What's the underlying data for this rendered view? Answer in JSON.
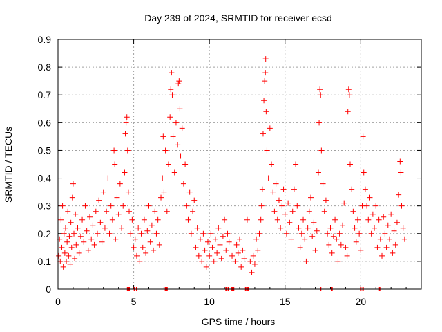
{
  "chart_data": {
    "type": "scatter",
    "title": "Day 239 of 2024, SRMTID for receiver ecsd",
    "xlabel": "GPS time / hours",
    "ylabel": "SRMTID / TECUs",
    "xlim": [
      0,
      24
    ],
    "ylim": [
      0,
      0.9
    ],
    "xticks": [
      0,
      5,
      10,
      15,
      20
    ],
    "xtick_labels": [
      "0",
      "5",
      "10",
      "15",
      "20"
    ],
    "yticks": [
      0,
      0.1,
      0.2,
      0.3,
      0.4,
      0.5,
      0.6,
      0.7,
      0.8,
      0.9
    ],
    "ytick_labels": [
      "0",
      "0.1",
      "0.2",
      "0.3",
      "0.4",
      "0.5",
      "0.6",
      "0.7",
      "0.8",
      "0.9"
    ],
    "grid": true,
    "marker": "+",
    "color": "#ff0000",
    "baseline_marks_x": [
      4.6,
      4.7,
      5.05,
      5.2,
      7.1,
      7.2,
      11.1,
      11.25,
      11.5,
      11.6,
      12.4,
      12.55,
      17.35,
      18.1,
      20.0,
      20.15,
      21.25
    ],
    "series": [
      {
        "name": "SRMTID",
        "points": [
          [
            0.05,
            0.12
          ],
          [
            0.1,
            0.18
          ],
          [
            0.15,
            0.1
          ],
          [
            0.2,
            0.25
          ],
          [
            0.25,
            0.15
          ],
          [
            0.3,
            0.3
          ],
          [
            0.35,
            0.08
          ],
          [
            0.4,
            0.2
          ],
          [
            0.45,
            0.13
          ],
          [
            0.5,
            0.22
          ],
          [
            0.55,
            0.1
          ],
          [
            0.6,
            0.17
          ],
          [
            0.65,
            0.28
          ],
          [
            0.7,
            0.12
          ],
          [
            0.75,
            0.19
          ],
          [
            0.8,
            0.09
          ],
          [
            0.85,
            0.24
          ],
          [
            0.9,
            0.15
          ],
          [
            0.95,
            0.33
          ],
          [
            1.0,
            0.38
          ],
          [
            1.05,
            0.2
          ],
          [
            1.1,
            0.11
          ],
          [
            1.15,
            0.27
          ],
          [
            1.2,
            0.16
          ],
          [
            1.3,
            0.22
          ],
          [
            1.4,
            0.13
          ],
          [
            1.5,
            0.19
          ],
          [
            1.6,
            0.25
          ],
          [
            1.7,
            0.17
          ],
          [
            1.8,
            0.3
          ],
          [
            1.9,
            0.21
          ],
          [
            2.0,
            0.14
          ],
          [
            2.1,
            0.26
          ],
          [
            2.2,
            0.18
          ],
          [
            2.3,
            0.23
          ],
          [
            2.4,
            0.16
          ],
          [
            2.5,
            0.28
          ],
          [
            2.6,
            0.2
          ],
          [
            2.7,
            0.32
          ],
          [
            2.8,
            0.24
          ],
          [
            2.9,
            0.17
          ],
          [
            3.0,
            0.35
          ],
          [
            3.1,
            0.22
          ],
          [
            3.2,
            0.28
          ],
          [
            3.3,
            0.4
          ],
          [
            3.4,
            0.2
          ],
          [
            3.5,
            0.3
          ],
          [
            3.6,
            0.25
          ],
          [
            3.7,
            0.5
          ],
          [
            3.75,
            0.45
          ],
          [
            3.8,
            0.18
          ],
          [
            3.9,
            0.33
          ],
          [
            4.0,
            0.27
          ],
          [
            4.1,
            0.38
          ],
          [
            4.2,
            0.22
          ],
          [
            4.3,
            0.3
          ],
          [
            4.4,
            0.42
          ],
          [
            4.45,
            0.56
          ],
          [
            4.5,
            0.6
          ],
          [
            4.55,
            0.62
          ],
          [
            4.6,
            0.5
          ],
          [
            4.65,
            0.35
          ],
          [
            4.7,
            0.28
          ],
          [
            4.8,
            0.2
          ],
          [
            4.9,
            0.25
          ],
          [
            5.0,
            0.15
          ],
          [
            5.1,
            0.18
          ],
          [
            5.2,
            0.12
          ],
          [
            5.3,
            0.22
          ],
          [
            5.4,
            0.1
          ],
          [
            5.5,
            0.2
          ],
          [
            5.6,
            0.15
          ],
          [
            5.7,
            0.25
          ],
          [
            5.8,
            0.13
          ],
          [
            5.9,
            0.21
          ],
          [
            6.0,
            0.3
          ],
          [
            6.1,
            0.17
          ],
          [
            6.2,
            0.23
          ],
          [
            6.3,
            0.14
          ],
          [
            6.4,
            0.28
          ],
          [
            6.5,
            0.2
          ],
          [
            6.6,
            0.25
          ],
          [
            6.7,
            0.16
          ],
          [
            6.8,
            0.33
          ],
          [
            6.9,
            0.4
          ],
          [
            6.95,
            0.55
          ],
          [
            7.0,
            0.35
          ],
          [
            7.1,
            0.5
          ],
          [
            7.2,
            0.28
          ],
          [
            7.3,
            0.45
          ],
          [
            7.4,
            0.62
          ],
          [
            7.45,
            0.72
          ],
          [
            7.5,
            0.78
          ],
          [
            7.55,
            0.7
          ],
          [
            7.6,
            0.55
          ],
          [
            7.7,
            0.42
          ],
          [
            7.8,
            0.6
          ],
          [
            7.9,
            0.52
          ],
          [
            7.95,
            0.74
          ],
          [
            8.0,
            0.75
          ],
          [
            8.05,
            0.65
          ],
          [
            8.1,
            0.48
          ],
          [
            8.2,
            0.58
          ],
          [
            8.3,
            0.38
          ],
          [
            8.4,
            0.45
          ],
          [
            8.5,
            0.3
          ],
          [
            8.6,
            0.25
          ],
          [
            8.7,
            0.35
          ],
          [
            8.8,
            0.2
          ],
          [
            8.9,
            0.28
          ],
          [
            9.0,
            0.32
          ],
          [
            9.1,
            0.15
          ],
          [
            9.2,
            0.22
          ],
          [
            9.3,
            0.12
          ],
          [
            9.4,
            0.18
          ],
          [
            9.5,
            0.1
          ],
          [
            9.6,
            0.2
          ],
          [
            9.7,
            0.14
          ],
          [
            9.8,
            0.08
          ],
          [
            9.9,
            0.17
          ],
          [
            10.0,
            0.12
          ],
          [
            10.1,
            0.2
          ],
          [
            10.2,
            0.15
          ],
          [
            10.3,
            0.1
          ],
          [
            10.4,
            0.18
          ],
          [
            10.5,
            0.13
          ],
          [
            10.6,
            0.22
          ],
          [
            10.7,
            0.16
          ],
          [
            10.8,
            0.11
          ],
          [
            10.9,
            0.19
          ],
          [
            11.0,
            0.25
          ],
          [
            11.1,
            0.14
          ],
          [
            11.2,
            0.2
          ],
          [
            11.3,
            0.17
          ],
          [
            11.5,
            0.12
          ],
          [
            11.7,
            0.1
          ],
          [
            11.8,
            0.16
          ],
          [
            11.9,
            0.13
          ],
          [
            12.0,
            0.18
          ],
          [
            12.1,
            0.08
          ],
          [
            12.2,
            0.14
          ],
          [
            12.3,
            0.11
          ],
          [
            12.5,
            0.25
          ],
          [
            12.7,
            0.1
          ],
          [
            12.8,
            0.06
          ],
          [
            12.9,
            0.12
          ],
          [
            13.0,
            0.09
          ],
          [
            13.1,
            0.18
          ],
          [
            13.2,
            0.14
          ],
          [
            13.3,
            0.2
          ],
          [
            13.4,
            0.25
          ],
          [
            13.45,
            0.3
          ],
          [
            13.5,
            0.36
          ],
          [
            13.55,
            0.56
          ],
          [
            13.6,
            0.68
          ],
          [
            13.65,
            0.75
          ],
          [
            13.7,
            0.78
          ],
          [
            13.72,
            0.83
          ],
          [
            13.75,
            0.64
          ],
          [
            13.8,
            0.5
          ],
          [
            13.9,
            0.4
          ],
          [
            14.0,
            0.58
          ],
          [
            14.1,
            0.45
          ],
          [
            14.2,
            0.35
          ],
          [
            14.3,
            0.28
          ],
          [
            14.4,
            0.38
          ],
          [
            14.5,
            0.25
          ],
          [
            14.6,
            0.32
          ],
          [
            14.7,
            0.22
          ],
          [
            14.8,
            0.3
          ],
          [
            14.9,
            0.36
          ],
          [
            15.0,
            0.27
          ],
          [
            15.1,
            0.2
          ],
          [
            15.2,
            0.31
          ],
          [
            15.3,
            0.24
          ],
          [
            15.4,
            0.18
          ],
          [
            15.5,
            0.28
          ],
          [
            15.6,
            0.36
          ],
          [
            15.7,
            0.45
          ],
          [
            15.8,
            0.3
          ],
          [
            15.9,
            0.22
          ],
          [
            16.0,
            0.15
          ],
          [
            16.1,
            0.2
          ],
          [
            16.2,
            0.25
          ],
          [
            16.3,
            0.18
          ],
          [
            16.4,
            0.1
          ],
          [
            16.5,
            0.22
          ],
          [
            16.6,
            0.28
          ],
          [
            16.7,
            0.33
          ],
          [
            16.8,
            0.19
          ],
          [
            16.9,
            0.24
          ],
          [
            17.0,
            0.14
          ],
          [
            17.1,
            0.21
          ],
          [
            17.2,
            0.42
          ],
          [
            17.25,
            0.6
          ],
          [
            17.3,
            0.72
          ],
          [
            17.35,
            0.7
          ],
          [
            17.4,
            0.5
          ],
          [
            17.5,
            0.38
          ],
          [
            17.6,
            0.28
          ],
          [
            17.7,
            0.32
          ],
          [
            17.8,
            0.2
          ],
          [
            17.9,
            0.16
          ],
          [
            18.0,
            0.22
          ],
          [
            18.1,
            0.13
          ],
          [
            18.2,
            0.19
          ],
          [
            18.3,
            0.25
          ],
          [
            18.4,
            0.18
          ],
          [
            18.5,
            0.1
          ],
          [
            18.6,
            0.2
          ],
          [
            18.7,
            0.16
          ],
          [
            18.8,
            0.23
          ],
          [
            18.9,
            0.31
          ],
          [
            19.0,
            0.15
          ],
          [
            19.1,
            0.12
          ],
          [
            19.15,
            0.64
          ],
          [
            19.2,
            0.72
          ],
          [
            19.25,
            0.7
          ],
          [
            19.3,
            0.45
          ],
          [
            19.4,
            0.36
          ],
          [
            19.5,
            0.28
          ],
          [
            19.6,
            0.22
          ],
          [
            19.7,
            0.17
          ],
          [
            19.8,
            0.25
          ],
          [
            19.9,
            0.2
          ],
          [
            20.0,
            0.14
          ],
          [
            20.1,
            0.3
          ],
          [
            20.15,
            0.55
          ],
          [
            20.2,
            0.42
          ],
          [
            20.3,
            0.36
          ],
          [
            20.4,
            0.3
          ],
          [
            20.5,
            0.25
          ],
          [
            20.6,
            0.33
          ],
          [
            20.7,
            0.2
          ],
          [
            20.8,
            0.27
          ],
          [
            20.9,
            0.22
          ],
          [
            21.0,
            0.3
          ],
          [
            21.1,
            0.15
          ],
          [
            21.2,
            0.25
          ],
          [
            21.3,
            0.18
          ],
          [
            21.4,
            0.12
          ],
          [
            21.5,
            0.26
          ],
          [
            21.6,
            0.2
          ],
          [
            21.7,
            0.15
          ],
          [
            21.8,
            0.23
          ],
          [
            21.9,
            0.18
          ],
          [
            22.0,
            0.27
          ],
          [
            22.1,
            0.13
          ],
          [
            22.2,
            0.21
          ],
          [
            22.3,
            0.16
          ],
          [
            22.4,
            0.24
          ],
          [
            22.5,
            0.34
          ],
          [
            22.6,
            0.46
          ],
          [
            22.65,
            0.42
          ],
          [
            22.7,
            0.3
          ],
          [
            22.8,
            0.22
          ],
          [
            22.9,
            0.18
          ]
        ]
      }
    ]
  }
}
